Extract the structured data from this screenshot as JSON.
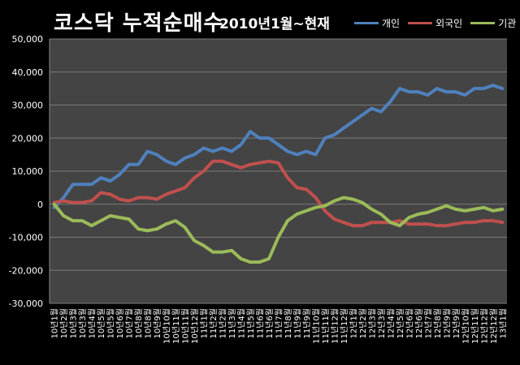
{
  "title": "코스닥 누적순매수",
  "subtitle": "2010년1월~현재",
  "colors": {
    "background": "#000000",
    "plot_area": "#444444",
    "grid": "#7a7a7a",
    "individual": "#4f81bd",
    "foreign": "#c0504d",
    "institution": "#9bbb59"
  },
  "chart_data": {
    "type": "line",
    "title": "코스닥 누적순매수",
    "subtitle": "2010년1월~현재",
    "xlabel": "",
    "ylabel": "",
    "ylim": [
      -30000,
      50000
    ],
    "yticks": [
      -30000,
      -20000,
      -10000,
      0,
      10000,
      20000,
      30000,
      40000,
      50000
    ],
    "ytick_labels": [
      "-30,000",
      "-20,000",
      "-10,000",
      "0",
      "10,000",
      "20,000",
      "30,000",
      "40,000",
      "50,000"
    ],
    "grid": true,
    "legend": "top-right",
    "x": [
      "10년1월",
      "10년2월",
      "10년3월",
      "10년3월",
      "10년4월",
      "10년5월",
      "10년5월",
      "10년6월",
      "10년7월",
      "10년8월",
      "10년8월",
      "10년9월",
      "10년10월",
      "10년11월",
      "10년11월",
      "10년12월",
      "11년1월",
      "11년2월",
      "11년2월",
      "11년3월",
      "11년4월",
      "11년5월",
      "11년6월",
      "11년6월",
      "11년7월",
      "11년8월",
      "11년9월",
      "11년9월",
      "11년10월",
      "11년11월",
      "11년12월",
      "11년12월",
      "12년1월",
      "12년2월",
      "12년3월",
      "12년3월",
      "12년4월",
      "12년5월",
      "12년6월",
      "12년6월",
      "12년7월",
      "12년8월",
      "12년9월",
      "12년9월",
      "12년10월",
      "12년11월",
      "12년12월",
      "12년12월",
      "13년1월"
    ],
    "series": [
      {
        "name": "개인",
        "values": [
          -1000,
          2000,
          6000,
          6000,
          6000,
          8000,
          7000,
          9000,
          12000,
          12000,
          16000,
          15000,
          13000,
          12000,
          14000,
          15000,
          17000,
          16000,
          17000,
          16000,
          18000,
          22000,
          20000,
          20000,
          18000,
          16000,
          15000,
          16000,
          15000,
          20000,
          21000,
          23000,
          25000,
          27000,
          29000,
          28000,
          31000,
          35000,
          34000,
          34000,
          33000,
          35000,
          34000,
          34000,
          33000,
          35000,
          35000,
          36000,
          35000
        ]
      },
      {
        "name": "외국인",
        "values": [
          500,
          1000,
          500,
          500,
          1000,
          3500,
          3000,
          1500,
          1000,
          2000,
          2000,
          1500,
          3000,
          4000,
          5000,
          8000,
          10000,
          13000,
          13000,
          12000,
          11000,
          12000,
          12500,
          13000,
          12500,
          8000,
          5000,
          4500,
          2000,
          -2000,
          -4500,
          -5500,
          -6500,
          -6500,
          -5500,
          -5500,
          -5500,
          -5000,
          -6000,
          -6000,
          -6000,
          -6500,
          -6500,
          -6000,
          -5500,
          -5500,
          -5000,
          -5000,
          -5500
        ]
      },
      {
        "name": "기관",
        "values": [
          0,
          -3500,
          -5000,
          -5000,
          -6500,
          -5000,
          -3500,
          -4000,
          -4500,
          -7500,
          -8000,
          -7500,
          -6000,
          -5000,
          -7000,
          -11000,
          -12500,
          -14500,
          -14500,
          -14000,
          -16500,
          -17500,
          -17500,
          -16500,
          -10000,
          -5000,
          -3000,
          -2000,
          -1000,
          -500,
          1000,
          2000,
          1500,
          500,
          -1500,
          -3000,
          -5500,
          -6500,
          -4000,
          -3000,
          -2500,
          -1500,
          -500,
          -1500,
          -2000,
          -1500,
          -1000,
          -2000,
          -1500
        ]
      }
    ]
  }
}
